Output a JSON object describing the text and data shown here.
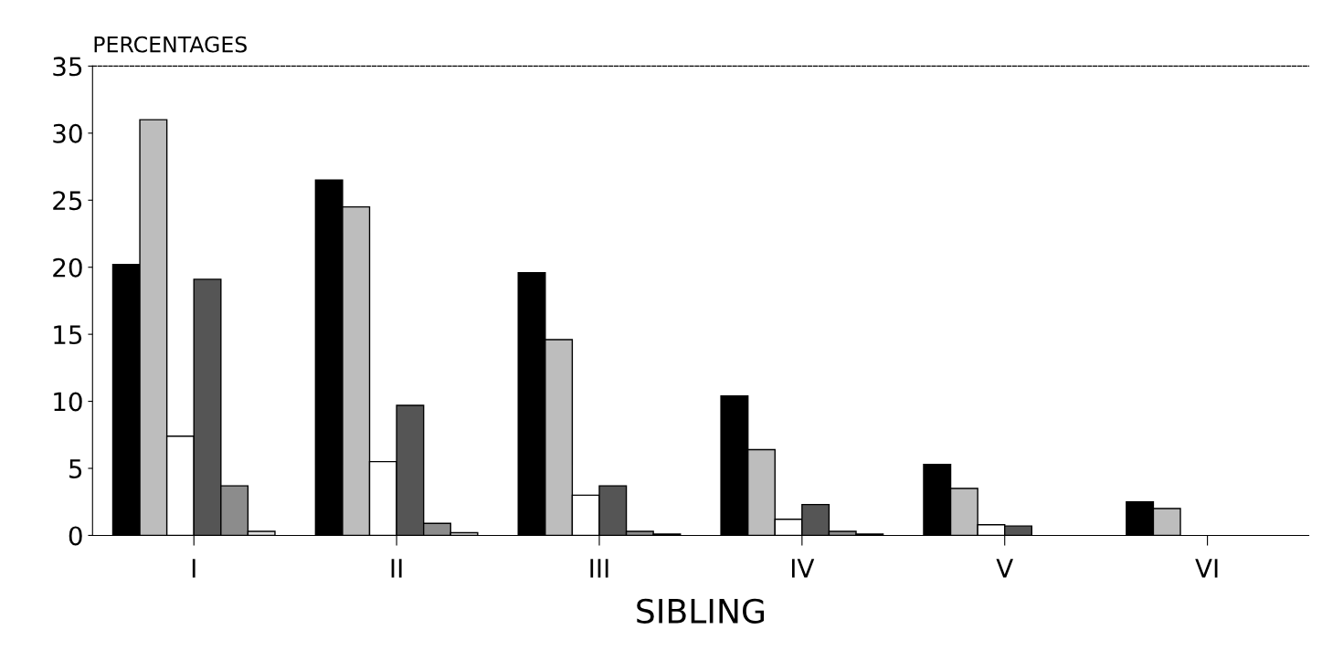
{
  "chart_data": {
    "type": "bar",
    "ylabel": "PERCENTAGES",
    "xlabel": "SIBLING",
    "categories": [
      "I",
      "II",
      "III",
      "IV",
      "V",
      "VI"
    ],
    "series": [
      {
        "color": "#000000",
        "values": [
          20.2,
          26.5,
          19.6,
          10.4,
          5.3,
          2.5
        ]
      },
      {
        "color": "#bdbdbd",
        "values": [
          31.0,
          24.5,
          14.6,
          6.4,
          3.5,
          2.0
        ]
      },
      {
        "color": "#ffffff",
        "values": [
          7.4,
          5.5,
          3.0,
          1.2,
          0.8,
          null
        ]
      },
      {
        "color": "#555555",
        "values": [
          19.1,
          9.7,
          3.7,
          2.3,
          0.7,
          null
        ]
      },
      {
        "color": "#8c8c8c",
        "values": [
          3.7,
          0.9,
          0.3,
          0.3,
          null,
          null
        ]
      },
      {
        "color": "#e0e0e0",
        "values": [
          0.3,
          0.2,
          0.1,
          0.1,
          null,
          null
        ]
      }
    ],
    "ylim": [
      0,
      35
    ],
    "yticks": [
      0,
      5,
      10,
      15,
      20,
      25,
      30,
      35
    ],
    "grid": false,
    "legend": false
  }
}
